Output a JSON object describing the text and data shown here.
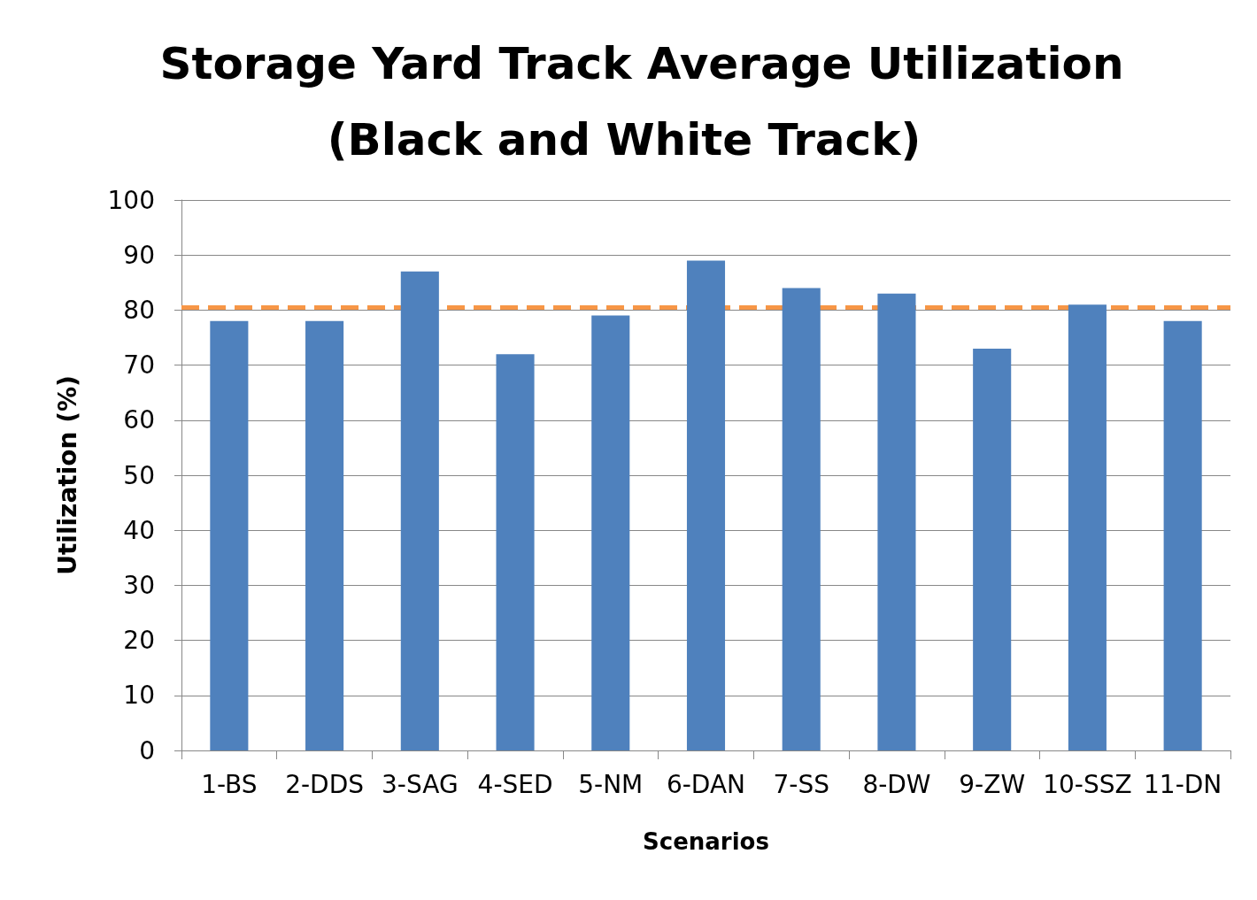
{
  "chart_data": {
    "type": "bar",
    "title": "Storage Yard Track Average Utilization",
    "subtitle": "(Black and White Track)",
    "xlabel": "Scenarios",
    "ylabel": "Utilization (%)",
    "categories": [
      "1-BS",
      "2-DDS",
      "3-SAG",
      "4-SED",
      "5-NM",
      "6-DAN",
      "7-SS",
      "8-DW",
      "9-ZW",
      "10-SSZ",
      "11-DN"
    ],
    "values": [
      78,
      78,
      87,
      72,
      79,
      89,
      84,
      83,
      73,
      81,
      78
    ],
    "color": "#4f81bd",
    "ylim": [
      0,
      100
    ],
    "yticks": [
      0,
      10,
      20,
      30,
      40,
      50,
      60,
      70,
      80,
      90,
      100
    ],
    "grid": "y",
    "ref_lines": [
      {
        "axis": "y",
        "value": 80.5,
        "color": "#f79646",
        "line_style": "dashed"
      }
    ]
  }
}
